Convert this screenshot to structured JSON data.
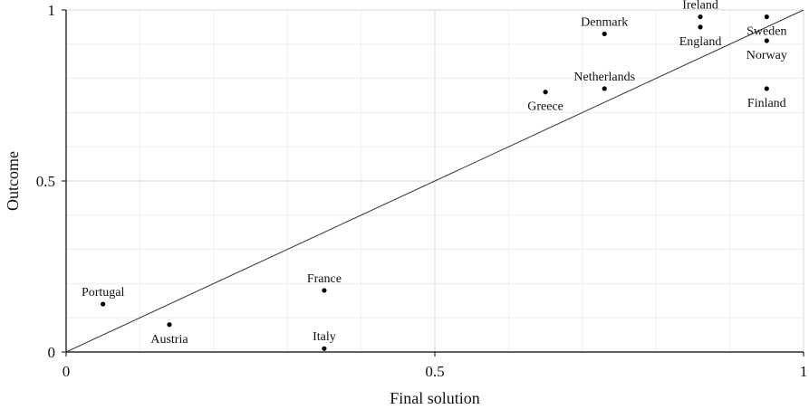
{
  "chart_data": {
    "type": "scatter",
    "title": "",
    "xlabel": "Final solution",
    "ylabel": "Outcome",
    "xlim": [
      0,
      1
    ],
    "ylim": [
      0,
      1
    ],
    "xticks": [
      {
        "value": 0,
        "label": "0"
      },
      {
        "value": 0.5,
        "label": "0.5"
      },
      {
        "value": 1,
        "label": "1"
      }
    ],
    "yticks": [
      {
        "value": 0,
        "label": "0"
      },
      {
        "value": 0.5,
        "label": "0.5"
      },
      {
        "value": 1,
        "label": "1"
      }
    ],
    "grid": true,
    "minor_grid_step": 0.1,
    "reference_line": {
      "from": [
        0,
        0
      ],
      "to": [
        1,
        1
      ]
    },
    "points": [
      {
        "label": "Portugal",
        "x": 0.05,
        "y": 0.14,
        "label_pos": "above"
      },
      {
        "label": "Austria",
        "x": 0.14,
        "y": 0.08,
        "label_pos": "below"
      },
      {
        "label": "France",
        "x": 0.35,
        "y": 0.18,
        "label_pos": "above"
      },
      {
        "label": "Italy",
        "x": 0.35,
        "y": 0.01,
        "label_pos": "above"
      },
      {
        "label": "Greece",
        "x": 0.65,
        "y": 0.76,
        "label_pos": "below"
      },
      {
        "label": "Netherlands",
        "x": 0.73,
        "y": 0.77,
        "label_pos": "above"
      },
      {
        "label": "Denmark",
        "x": 0.73,
        "y": 0.93,
        "label_pos": "above"
      },
      {
        "label": "Ireland",
        "x": 0.86,
        "y": 0.98,
        "label_pos": "above"
      },
      {
        "label": "England",
        "x": 0.86,
        "y": 0.95,
        "label_pos": "below"
      },
      {
        "label": "Sweden",
        "x": 0.95,
        "y": 0.98,
        "label_pos": "below"
      },
      {
        "label": "Norway",
        "x": 0.95,
        "y": 0.91,
        "label_pos": "below"
      },
      {
        "label": "Finland",
        "x": 0.95,
        "y": 0.77,
        "label_pos": "below"
      }
    ],
    "colors": {
      "point": "#000000",
      "axis": "#000000",
      "grid": "#d9d9d9",
      "minor_grid": "#eeeeee"
    }
  }
}
